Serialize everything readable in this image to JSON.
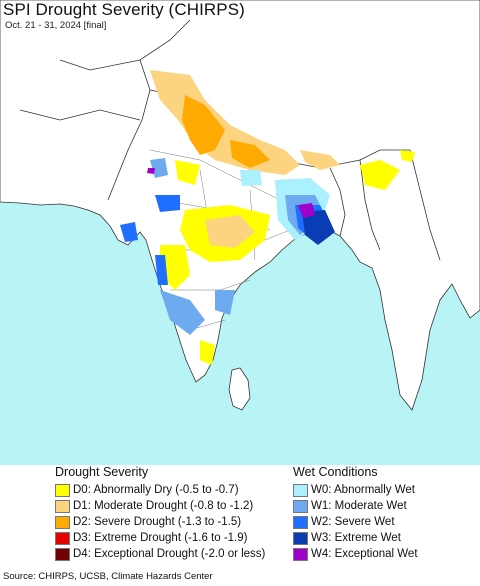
{
  "title": "SPI Drought Severity (CHIRPS)",
  "subtitle": "Oct. 21 - 31, 2024 [final]",
  "map": {
    "ocean_color": "#b8f3f5",
    "land_color": "#ffffff",
    "border_color": "#333333"
  },
  "legend": {
    "drought": {
      "heading": "Drought Severity",
      "items": [
        {
          "label": "D0: Abnormally Dry (-0.5 to -0.7)",
          "color": "#ffff00"
        },
        {
          "label": "D1: Moderate Drought (-0.8 to -1.2)",
          "color": "#fcd37f"
        },
        {
          "label": "D2: Severe Drought (-1.3 to -1.5)",
          "color": "#ffaa00"
        },
        {
          "label": "D3: Extreme Drought (-1.6 to -1.9)",
          "color": "#e60000"
        },
        {
          "label": "D4: Exceptional Drought (-2.0 or less)",
          "color": "#730000"
        }
      ]
    },
    "wet": {
      "heading": "Wet Conditions",
      "items": [
        {
          "label": "W0: Abnormally Wet",
          "color": "#aaf0ff"
        },
        {
          "label": "W1: Moderate Wet",
          "color": "#6eaaf0"
        },
        {
          "label": "W2: Severe Wet",
          "color": "#1e6eff"
        },
        {
          "label": "W3: Extreme Wet",
          "color": "#0a3cb4"
        },
        {
          "label": "W4: Exceptional Wet",
          "color": "#a000c8"
        }
      ]
    }
  },
  "source": "Source: CHIRPS, UCSB, Climate Hazards Center"
}
